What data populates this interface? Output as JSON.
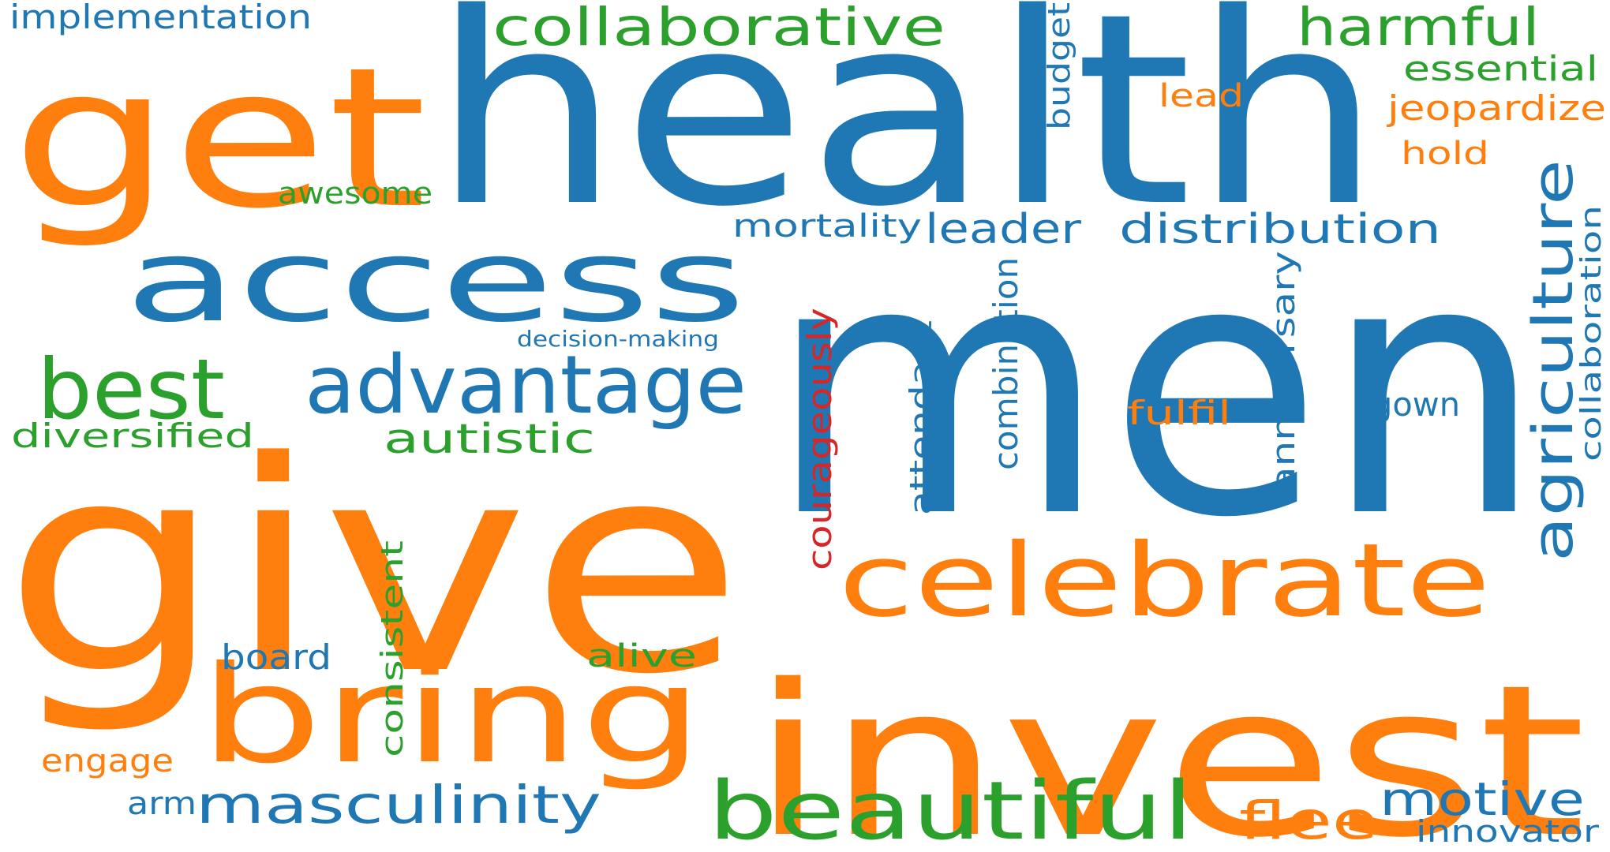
{
  "palette": {
    "blue": "#1f77b4",
    "orange": "#ff7f0e",
    "green": "#2ca02c",
    "red": "#d62728"
  },
  "words": [
    {
      "id": "men",
      "text": "men",
      "color": "blue",
      "vertical": false
    },
    {
      "id": "health",
      "text": "health",
      "color": "blue",
      "vertical": false
    },
    {
      "id": "give",
      "text": "give",
      "color": "orange",
      "vertical": false
    },
    {
      "id": "get",
      "text": "get",
      "color": "orange",
      "vertical": false
    },
    {
      "id": "invest",
      "text": "invest",
      "color": "orange",
      "vertical": false
    },
    {
      "id": "access",
      "text": "access",
      "color": "blue",
      "vertical": false
    },
    {
      "id": "bring",
      "text": "bring",
      "color": "orange",
      "vertical": false
    },
    {
      "id": "celebrate",
      "text": "celebrate",
      "color": "orange",
      "vertical": false
    },
    {
      "id": "advantage",
      "text": "advantage",
      "color": "blue",
      "vertical": false
    },
    {
      "id": "best",
      "text": "best",
      "color": "green",
      "vertical": false
    },
    {
      "id": "beautiful",
      "text": "beautiful",
      "color": "green",
      "vertical": false
    },
    {
      "id": "collaborative",
      "text": "collaborative",
      "color": "green",
      "vertical": false
    },
    {
      "id": "harmful",
      "text": "harmful",
      "color": "green",
      "vertical": false
    },
    {
      "id": "masculinity",
      "text": "masculinity",
      "color": "blue",
      "vertical": false
    },
    {
      "id": "agriculture",
      "text": "agriculture",
      "color": "blue",
      "vertical": true
    },
    {
      "id": "motive",
      "text": "motive",
      "color": "blue",
      "vertical": false
    },
    {
      "id": "flee",
      "text": "flee",
      "color": "orange",
      "vertical": false
    },
    {
      "id": "distribution",
      "text": "distribution",
      "color": "blue",
      "vertical": false
    },
    {
      "id": "autistic",
      "text": "autistic",
      "color": "green",
      "vertical": false
    },
    {
      "id": "leader",
      "text": "leader",
      "color": "blue",
      "vertical": false
    },
    {
      "id": "essential",
      "text": "essential",
      "color": "green",
      "vertical": false
    },
    {
      "id": "jeopardize",
      "text": "jeopardize",
      "color": "orange",
      "vertical": false
    },
    {
      "id": "implementation",
      "text": "implementation",
      "color": "blue",
      "vertical": false
    },
    {
      "id": "diversified",
      "text": "diversified",
      "color": "green",
      "vertical": false
    },
    {
      "id": "mortality",
      "text": "mortality",
      "color": "blue",
      "vertical": false
    },
    {
      "id": "courageously",
      "text": "courageously",
      "color": "red",
      "vertical": true
    },
    {
      "id": "combination",
      "text": "combination",
      "color": "blue",
      "vertical": true
    },
    {
      "id": "anniversary",
      "text": "anniversary",
      "color": "blue",
      "vertical": true
    },
    {
      "id": "collaboration",
      "text": "collaboration",
      "color": "blue",
      "vertical": true
    },
    {
      "id": "consistent",
      "text": "consistent",
      "color": "green",
      "vertical": true
    },
    {
      "id": "attendant",
      "text": "attendant",
      "color": "blue",
      "vertical": true
    },
    {
      "id": "awesome",
      "text": "awesome",
      "color": "green",
      "vertical": false
    },
    {
      "id": "board",
      "text": "board",
      "color": "blue",
      "vertical": false
    },
    {
      "id": "alive",
      "text": "alive",
      "color": "green",
      "vertical": false
    },
    {
      "id": "engage",
      "text": "engage",
      "color": "orange",
      "vertical": false
    },
    {
      "id": "arm",
      "text": "arm",
      "color": "blue",
      "vertical": false
    },
    {
      "id": "innovator",
      "text": "innovator",
      "color": "blue",
      "vertical": false
    },
    {
      "id": "fulfil",
      "text": "fulfil",
      "color": "orange",
      "vertical": false
    },
    {
      "id": "gown",
      "text": "gown",
      "color": "blue",
      "vertical": false
    },
    {
      "id": "budget",
      "text": "budget",
      "color": "blue",
      "vertical": true
    },
    {
      "id": "lead",
      "text": "lead",
      "color": "orange",
      "vertical": false
    },
    {
      "id": "hold",
      "text": "hold",
      "color": "orange",
      "vertical": false
    },
    {
      "id": "decision-making",
      "text": "decision-making",
      "color": "blue",
      "vertical": false
    }
  ]
}
